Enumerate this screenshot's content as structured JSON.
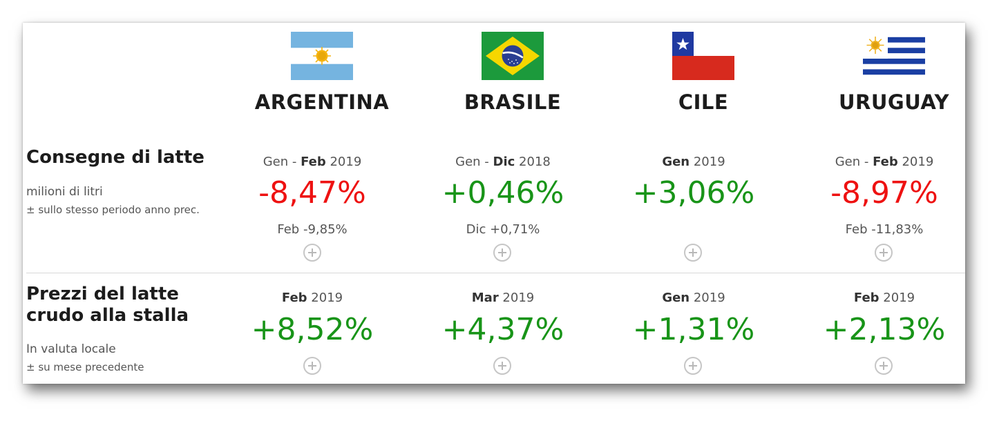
{
  "countries": [
    {
      "name": "ARGENTINA",
      "flag": "argentina-flag"
    },
    {
      "name": "BRASILE",
      "flag": "brazil-flag"
    },
    {
      "name": "CILE",
      "flag": "chile-flag"
    },
    {
      "name": "URUGUAY",
      "flag": "uruguay-flag"
    }
  ],
  "deliveries": {
    "title": "Consegne di latte",
    "unit": "milioni di litri",
    "note": "± sullo stesso periodo anno prec.",
    "cells": [
      {
        "period_pre": "Gen - ",
        "period_bold": "Feb",
        "period_post": " 2019",
        "value": "-8,47%",
        "sub": "Feb -9,85%"
      },
      {
        "period_pre": "Gen - ",
        "period_bold": "Dic",
        "period_post": " 2018",
        "value": "+0,46%",
        "sub": "Dic +0,71%"
      },
      {
        "period_pre": "",
        "period_bold": "Gen",
        "period_post": " 2019",
        "value": "+3,06%",
        "sub": ""
      },
      {
        "period_pre": "Gen - ",
        "period_bold": "Feb",
        "period_post": " 2019",
        "value": "-8,97%",
        "sub": "Feb -11,83%"
      }
    ]
  },
  "prices": {
    "title_line1": "Prezzi del latte",
    "title_line2": "crudo alla stalla",
    "unit": "In valuta locale",
    "note": "± su mese precedente",
    "cells": [
      {
        "period_pre": "",
        "period_bold": "Feb",
        "period_post": " 2019",
        "value": "+8,52%"
      },
      {
        "period_pre": "",
        "period_bold": "Mar",
        "period_post": " 2019",
        "value": "+4,37%"
      },
      {
        "period_pre": "",
        "period_bold": "Gen",
        "period_post": " 2019",
        "value": "+1,31%"
      },
      {
        "period_pre": "",
        "period_bold": "Feb",
        "period_post": " 2019",
        "value": "+2,13%"
      }
    ]
  },
  "colors": {
    "negative": "#ee1111",
    "positive": "#189418"
  }
}
